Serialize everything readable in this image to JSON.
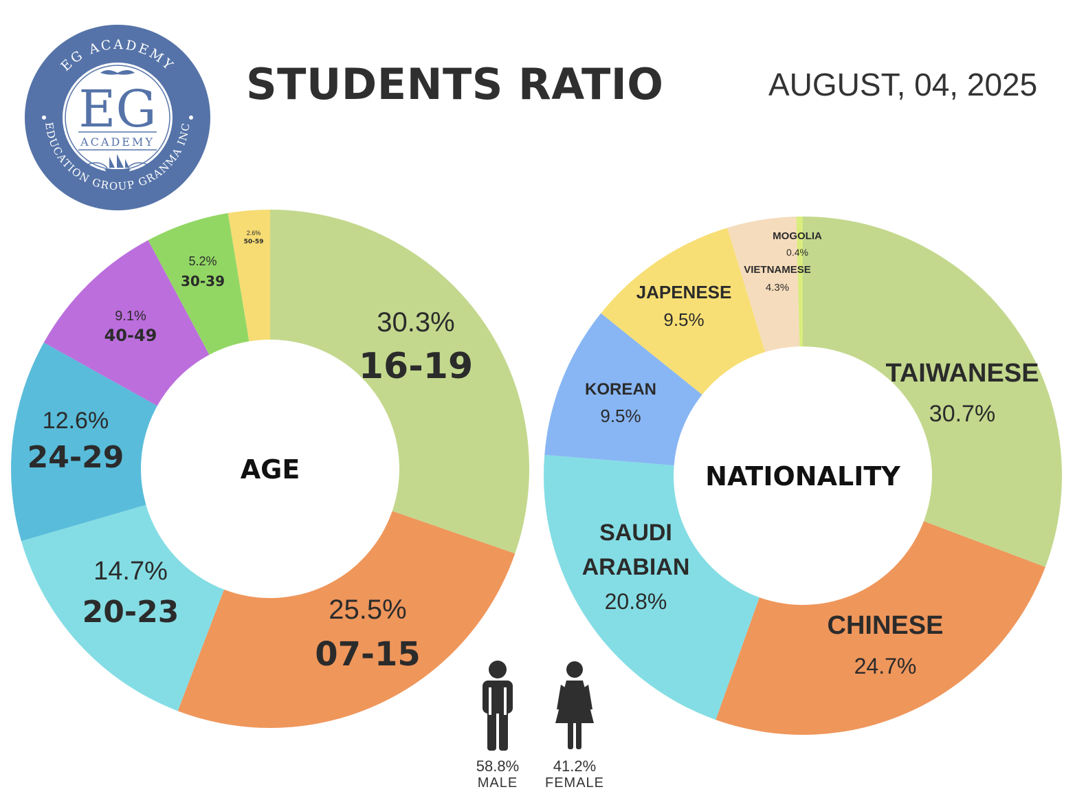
{
  "header": {
    "title": "STUDENTS RATIO",
    "date": "AUGUST, 04, 2025"
  },
  "logo": {
    "top_arc": "EG ACADEMY",
    "bottom_arc": "EDUCATION GROUP GRANMA INC",
    "monogram": "EG",
    "sub": "ACADEMY",
    "colors": {
      "ring": "#5573a8",
      "text": "#ffffff",
      "center_text": "#5573a8"
    }
  },
  "chart_data": [
    {
      "type": "pie",
      "center_label": "AGE",
      "slices": [
        {
          "label": "16-19",
          "value": 30.3,
          "value_label": "30.3%",
          "color": "#c3d88d"
        },
        {
          "label": "07-15",
          "value": 25.5,
          "value_label": "25.5%",
          "color": "#ef965b"
        },
        {
          "label": "20-23",
          "value": 14.7,
          "value_label": "14.7%",
          "color": "#84dde4"
        },
        {
          "label": "24-29",
          "value": 12.6,
          "value_label": "12.6%",
          "color": "#59bcda"
        },
        {
          "label": "40-49",
          "value": 9.1,
          "value_label": "9.1%",
          "color": "#bc6edd"
        },
        {
          "label": "30-39",
          "value": 5.2,
          "value_label": "5.2%",
          "color": "#92d764"
        },
        {
          "label": "50-59",
          "value": 2.6,
          "value_label": "2.6%",
          "color": "#f6dc73"
        }
      ]
    },
    {
      "type": "pie",
      "center_label": "NATIONALITY",
      "slices": [
        {
          "label": "TAIWANESE",
          "value": 30.7,
          "value_label": "30.7%",
          "color": "#c3d88d"
        },
        {
          "label": "CHINESE",
          "value": 24.7,
          "value_label": "24.7%",
          "color": "#ef965b"
        },
        {
          "label": "SAUDI ARABIAN",
          "value": 20.8,
          "value_label": "20.8%",
          "color": "#84dde4"
        },
        {
          "label": "KOREAN",
          "value": 9.5,
          "value_label": "9.5%",
          "color": "#88b6f4"
        },
        {
          "label": "JAPENESE",
          "value": 9.5,
          "value_label": "9.5%",
          "color": "#f8df75"
        },
        {
          "label": "VIETNAMESE",
          "value": 4.3,
          "value_label": "4.3%",
          "color": "#f5dcbc"
        },
        {
          "label": "MOGOLIA",
          "value": 0.4,
          "value_label": "0.4%",
          "color": "#d9ec7d"
        }
      ]
    }
  ],
  "gender": [
    {
      "key": "male",
      "value": 58.8,
      "pct": "58.8%",
      "label": "MALE",
      "icon": "male-person-icon"
    },
    {
      "key": "female",
      "value": 41.2,
      "pct": "41.2%",
      "label": "FEMALE",
      "icon": "female-person-icon"
    }
  ]
}
